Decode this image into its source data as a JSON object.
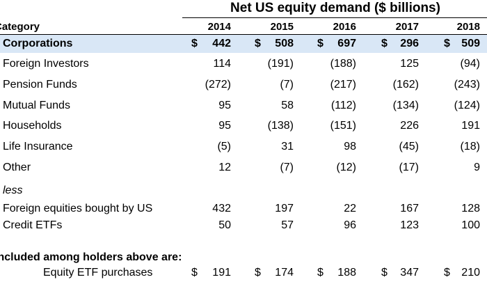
{
  "table": {
    "title": "Net US equity demand ($ billions)",
    "category_header": "Category",
    "years": [
      "2014",
      "2015",
      "2016",
      "2017",
      "2018"
    ],
    "highlight_row": {
      "label": "Corporations",
      "values": [
        "442",
        "508",
        "697",
        "296",
        "509"
      ]
    },
    "rows": [
      {
        "label": "Foreign Investors",
        "values": [
          "114",
          "(191)",
          "(188)",
          "125",
          "(94)"
        ]
      },
      {
        "label": "Pension Funds",
        "values": [
          "(272)",
          "(7)",
          "(217)",
          "(162)",
          "(243)"
        ]
      },
      {
        "label": "Mutual Funds",
        "values": [
          "95",
          "58",
          "(112)",
          "(134)",
          "(124)"
        ]
      },
      {
        "label": "Households",
        "values": [
          "95",
          "(138)",
          "(151)",
          "226",
          "191"
        ]
      },
      {
        "label": "Life Insurance",
        "values": [
          "(5)",
          "31",
          "98",
          "(45)",
          "(18)"
        ]
      },
      {
        "label": "Other",
        "values": [
          "12",
          "(7)",
          "(12)",
          "(17)",
          "9"
        ]
      }
    ],
    "less_label": "less",
    "less_rows": [
      {
        "label": "Foreign equities bought by US",
        "values": [
          "432",
          "197",
          "22",
          "167",
          "128"
        ]
      },
      {
        "label": "Credit ETFs",
        "values": [
          "50",
          "57",
          "96",
          "123",
          "100"
        ]
      }
    ],
    "included_label": "Included among holders above are:",
    "etf_row": {
      "label": "Equity ETF purchases",
      "values": [
        "191",
        "174",
        "188",
        "347",
        "210"
      ]
    },
    "currency_symbol": "$"
  },
  "colors": {
    "highlight": "#d9e7f6",
    "text": "#000000",
    "background": "#ffffff"
  }
}
